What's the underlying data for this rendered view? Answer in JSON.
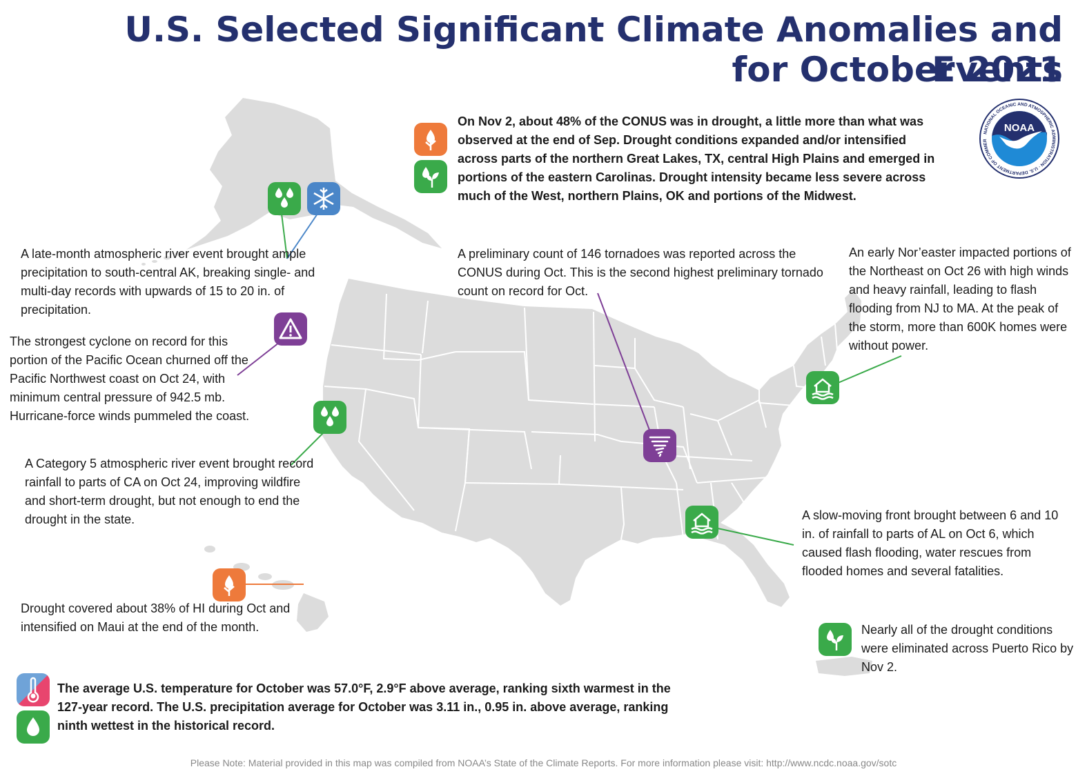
{
  "title": {
    "line1": "U.S. Selected Significant Climate Anomalies and Events",
    "line2": "for October 2021"
  },
  "logo": {
    "text": "NOAA",
    "ring_text": "NATIONAL OCEANIC AND ATMOSPHERIC ADMINISTRATION · U.S. DEPARTMENT OF COMMERCE"
  },
  "colors": {
    "title": "#24306e",
    "map_fill": "#dcdcdc",
    "precip_green": "#3aaa4a",
    "drought_orange": "#ee7a3b",
    "snow_blue": "#4a86c8",
    "severe_purple": "#7e3f96"
  },
  "events": {
    "drought_conus": "On Nov 2, about 48% of the CONUS was in drought, a little more than what was observed at the end of Sep. Drought conditions expanded and/or intensified across parts of the northern Great Lakes, TX, central High Plains and emerged in portions of the eastern Carolinas. Drought intensity became less severe across much of the West, northern Plains, OK and portions of the Midwest.",
    "alaska": "A late-month atmospheric river event brought ample precipitation to south-central AK, breaking single- and multi-day records with upwards of 15 to 20 in. of precipitation.",
    "cyclone": "The strongest cyclone on record for this portion of the Pacific Ocean churned off the Pacific Northwest coast on Oct 24, with minimum central pressure of 942.5 mb. Hurricane-force winds pummeled the coast.",
    "california": "A Category 5 atmospheric river event brought record rainfall to parts of CA on Oct 24, improving wildfire and short-term drought, but not enough to end the drought in the state.",
    "hawaii": "Drought covered about 38% of HI during Oct and intensified on Maui at the end of the month.",
    "tornado": "A preliminary count of 146 tornadoes was reported across the CONUS during Oct. This is the second highest preliminary tornado count on record for Oct.",
    "noreaster": "An early Nor’easter impacted portions of the Northeast on Oct 26 with high winds and heavy rainfall, leading to flash flooding from NJ to MA. At the peak of the storm, more than 600K homes were without power.",
    "alabama": "A slow-moving front brought between 6 and 10 in. of rainfall to parts of AL on Oct 6, which caused flash flooding, water rescues from flooded homes and several fatalities.",
    "puerto_rico": "Nearly all of the drought conditions were eliminated across Puerto Rico by Nov 2.",
    "national_summary": "The average U.S. temperature for October was 57.0°F, 2.9°F above average, ranking sixth warmest in the 127-year record. The U.S. precipitation average for October was 3.11 in., 0.95 in. above average, ranking ninth wettest in the historical record."
  },
  "icons": {
    "drought_conus": [
      "drought-icon",
      "drought-improvement-icon"
    ],
    "alaska": [
      "heavy-precipitation-icon",
      "snowflake-icon"
    ],
    "cyclone": "warning-icon",
    "california": "heavy-precipitation-icon",
    "hawaii": "drought-icon",
    "tornado": "tornado-icon",
    "noreaster": "flood-icon",
    "alabama": "flood-icon",
    "puerto_rico": "drought-improvement-icon",
    "national_summary": [
      "thermometer-icon",
      "precipitation-icon"
    ]
  },
  "footer_note": "Please Note: Material provided in this map was compiled from NOAA’s State of the Climate Reports. For more information please visit: http://www.ncdc.noaa.gov/sotc"
}
